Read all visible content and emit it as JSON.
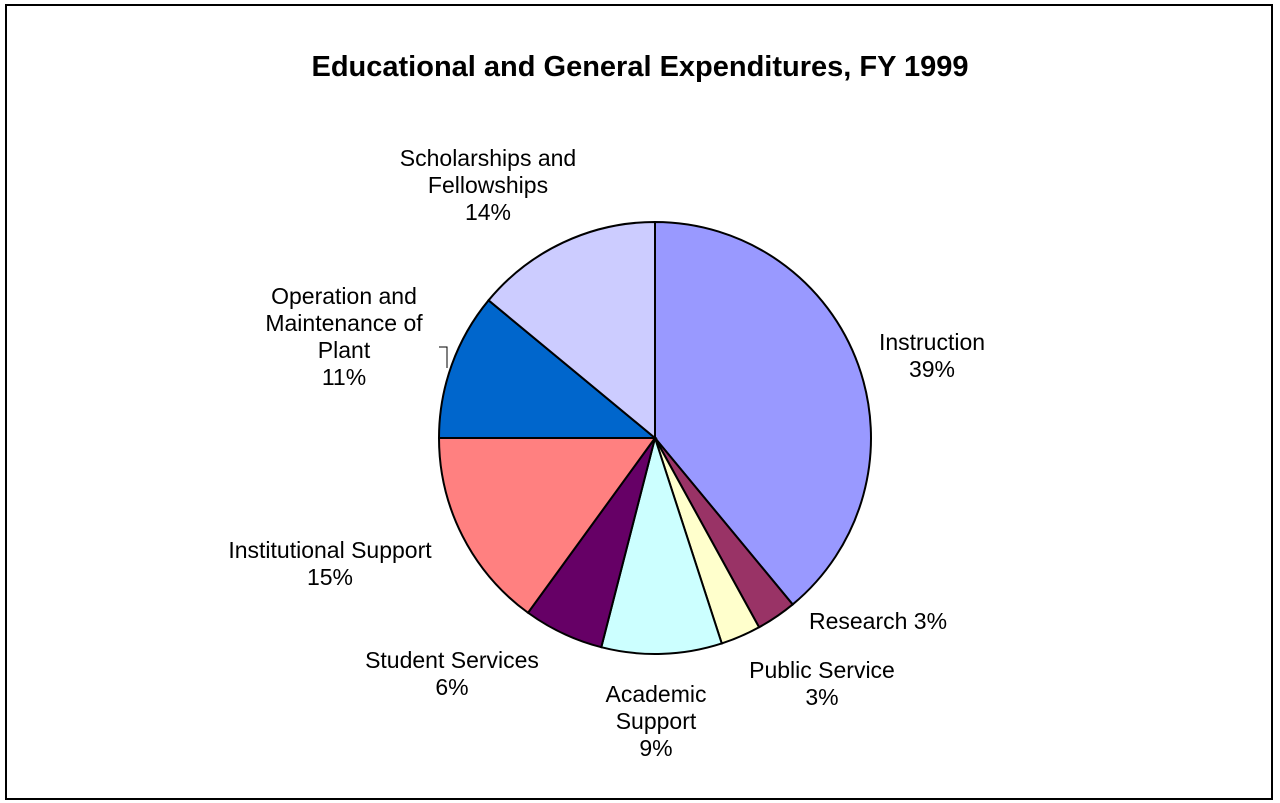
{
  "chart_data": {
    "type": "pie",
    "title": "Educational and General Expenditures, FY 1999",
    "slices": [
      {
        "name": "Instruction",
        "value": 39,
        "label_lines": [
          "Instruction",
          "39%"
        ],
        "color": "#9999FF"
      },
      {
        "name": "Research",
        "value": 3,
        "label_lines": [
          "Research  3%"
        ],
        "color": "#993366"
      },
      {
        "name": "Public Service",
        "value": 3,
        "label_lines": [
          "Public Service",
          "3%"
        ],
        "color": "#FFFFCC"
      },
      {
        "name": "Academic Support",
        "value": 9,
        "label_lines": [
          "Academic",
          "Support",
          "9%"
        ],
        "color": "#CCFFFF"
      },
      {
        "name": "Student Services",
        "value": 6,
        "label_lines": [
          "Student Services",
          "6%"
        ],
        "color": "#660066"
      },
      {
        "name": "Institutional Support",
        "value": 15,
        "label_lines": [
          "Institutional Support",
          "15%"
        ],
        "color": "#FF8080"
      },
      {
        "name": "Operation and Maintenance of Plant",
        "value": 11,
        "label_lines": [
          "Operation and",
          "Maintenance of",
          "Plant",
          "11%"
        ],
        "color": "#0066CC"
      },
      {
        "name": "Scholarships and Fellowships",
        "value": 14,
        "label_lines": [
          "Scholarships and",
          "Fellowships",
          "14%"
        ],
        "color": "#CCCCFF"
      }
    ]
  }
}
